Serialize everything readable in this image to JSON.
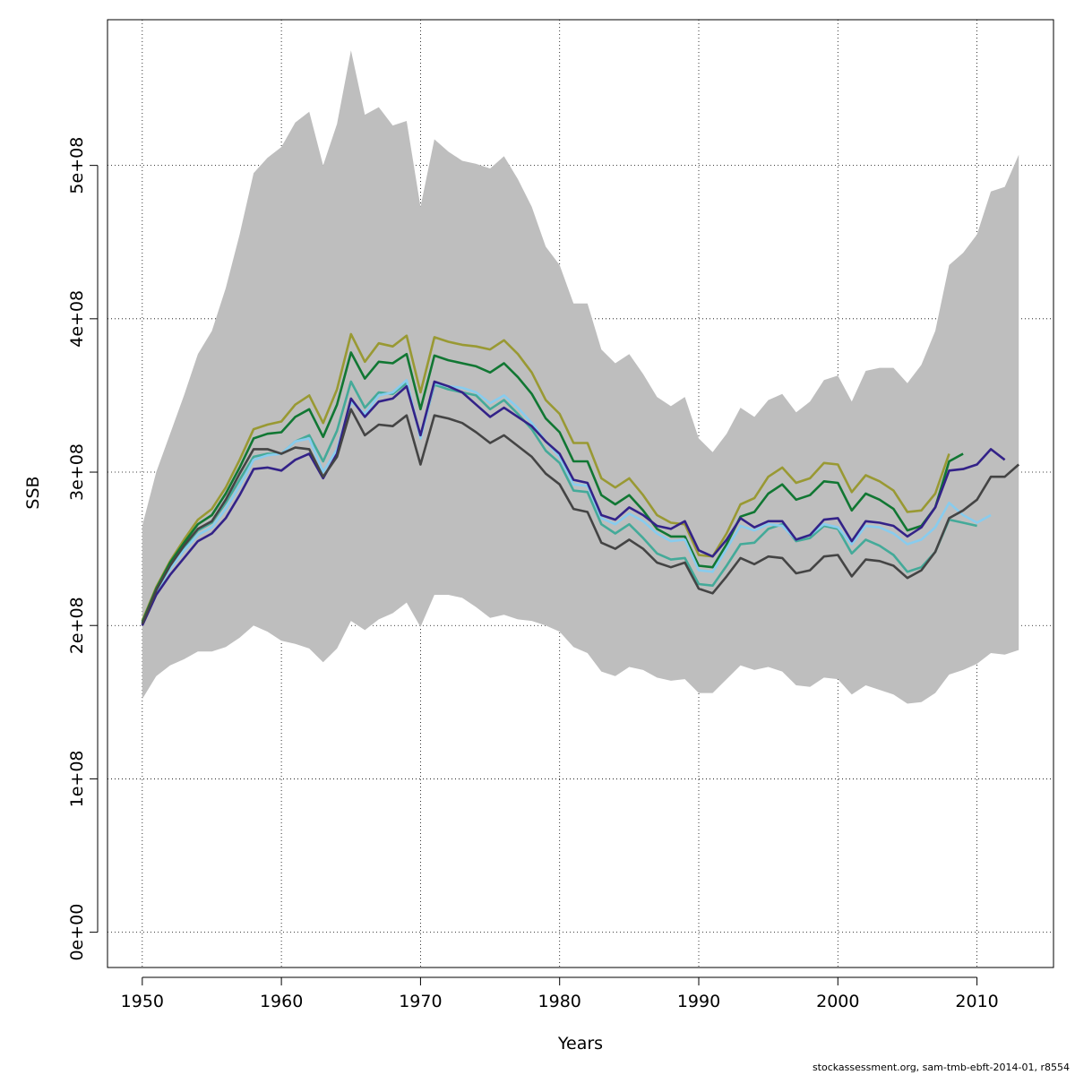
{
  "footer_text": "stockassessment.org, sam-tmb-ebft-2014-01, r8554",
  "chart_data": {
    "type": "line",
    "title": "",
    "xlabel": "Years",
    "ylabel": "SSB",
    "xlim": [
      1947.5,
      2015.5
    ],
    "ylim": [
      -23000000.0,
      595000000.0
    ],
    "xticks": [
      1950,
      1960,
      1970,
      1980,
      1990,
      2000,
      2010
    ],
    "xtick_labels": [
      "1950",
      "1960",
      "1970",
      "1980",
      "1990",
      "2000",
      "2010"
    ],
    "yticks": [
      0,
      100000000,
      200000000,
      300000000,
      400000000,
      500000000
    ],
    "ytick_labels": [
      "0e+00",
      "1e+08",
      "2e+08",
      "3e+08",
      "4e+08",
      "5e+08"
    ],
    "grid": true,
    "band_color": "#bebebe",
    "band": {
      "x": [
        1950,
        1951,
        1952,
        1953,
        1954,
        1955,
        1956,
        1957,
        1958,
        1959,
        1960,
        1961,
        1962,
        1963,
        1964,
        1965,
        1966,
        1967,
        1968,
        1969,
        1970,
        1971,
        1972,
        1973,
        1974,
        1975,
        1976,
        1977,
        1978,
        1979,
        1980,
        1981,
        1982,
        1983,
        1984,
        1985,
        1986,
        1987,
        1988,
        1989,
        1990,
        1991,
        1992,
        1993,
        1994,
        1995,
        1996,
        1997,
        1998,
        1999,
        2000,
        2001,
        2002,
        2003,
        2004,
        2005,
        2006,
        2007,
        2008,
        2009,
        2010,
        2011,
        2012,
        2013
      ],
      "upper": [
        265000000.0,
        300000000.0,
        325000000.0,
        350000000.0,
        377000000.0,
        392000000.0,
        420000000.0,
        455000000.0,
        495000000.0,
        505000000.0,
        512000000.0,
        528000000.0,
        535000000.0,
        500000000.0,
        527000000.0,
        575000000.0,
        533000000.0,
        538000000.0,
        526000000.0,
        529000000.0,
        473000000.0,
        517000000.0,
        509000000.0,
        503000000.0,
        501000000.0,
        498000000.0,
        506000000.0,
        491000000.0,
        473000000.0,
        447000000.0,
        435000000.0,
        410000000.0,
        410000000.0,
        380000000.0,
        371000000.0,
        377000000.0,
        364000000.0,
        349000000.0,
        343000000.0,
        349000000.0,
        322000000.0,
        313000000.0,
        325000000.0,
        342000000.0,
        336000000.0,
        347000000.0,
        351000000.0,
        339000000.0,
        346000000.0,
        360000000.0,
        363000000.0,
        346000000.0,
        366000000.0,
        368000000.0,
        368000000.0,
        358000000.0,
        370000000.0,
        392000000.0,
        435000000.0,
        443000000.0,
        455000000.0,
        483000000.0,
        486000000.0,
        507000000.0
      ],
      "lower": [
        152000000.0,
        167000000.0,
        174000000.0,
        178000000.0,
        183000000.0,
        183000000.0,
        186000000.0,
        192000000.0,
        200000000.0,
        196000000.0,
        190000000.0,
        188000000.0,
        185000000.0,
        176000000.0,
        185000000.0,
        203000000.0,
        197000000.0,
        204000000.0,
        208000000.0,
        215000000.0,
        199000000.0,
        220000000.0,
        220000000.0,
        218000000.0,
        212000000.0,
        205000000.0,
        207000000.0,
        204000000.0,
        203000000.0,
        200000000.0,
        196000000.0,
        186000000.0,
        182000000.0,
        170000000.0,
        167000000.0,
        173000000.0,
        171000000.0,
        166000000.0,
        164000000.0,
        165000000.0,
        156000000.0,
        156000000.0,
        165000000.0,
        174000000.0,
        171000000.0,
        173000000.0,
        170000000.0,
        161000000.0,
        160000000.0,
        166000000.0,
        165000000.0,
        155000000.0,
        161000000.0,
        158000000.0,
        155000000.0,
        149000000.0,
        150000000.0,
        156000000.0,
        168000000.0,
        171000000.0,
        175000000.0,
        182000000.0,
        181000000.0,
        184000000.0
      ]
    },
    "series": [
      {
        "color": "#999933",
        "x": [
          1950,
          1951,
          1952,
          1953,
          1954,
          1955,
          1956,
          1957,
          1958,
          1959,
          1960,
          1961,
          1962,
          1963,
          1964,
          1965,
          1966,
          1967,
          1968,
          1969,
          1970,
          1971,
          1972,
          1973,
          1974,
          1975,
          1976,
          1977,
          1978,
          1979,
          1980,
          1981,
          1982,
          1983,
          1984,
          1985,
          1986,
          1987,
          1988,
          1989,
          1990,
          1991,
          1992,
          1993,
          1994,
          1995,
          1996,
          1997,
          1998,
          1999,
          2000,
          2001,
          2002,
          2003,
          2004,
          2005,
          2006,
          2007,
          2008
        ],
        "y": [
          203000000.0,
          225000000.0,
          242000000.0,
          256000000.0,
          269000000.0,
          276000000.0,
          290000000.0,
          308000000.0,
          328000000.0,
          331000000.0,
          333000000.0,
          344000000.0,
          350000000.0,
          332000000.0,
          354000000.0,
          390000000.0,
          372000000.0,
          384000000.0,
          382000000.0,
          389000000.0,
          352000000.0,
          388000000.0,
          385000000.0,
          383000000.0,
          382000000.0,
          380000000.0,
          386000000.0,
          377000000.0,
          365000000.0,
          347000000.0,
          338000000.0,
          319000000.0,
          319000000.0,
          296000000.0,
          290000000.0,
          296000000.0,
          285000000.0,
          272000000.0,
          267000000.0,
          266000000.0,
          246000000.0,
          245000000.0,
          260000000.0,
          279000000.0,
          283000000.0,
          297000000.0,
          303000000.0,
          293000000.0,
          296000000.0,
          306000000.0,
          305000000.0,
          287000000.0,
          298000000.0,
          294000000.0,
          288000000.0,
          274000000.0,
          275000000.0,
          286000000.0,
          312000000.0
        ]
      },
      {
        "color": "#117733",
        "x": [
          1950,
          1951,
          1952,
          1953,
          1954,
          1955,
          1956,
          1957,
          1958,
          1959,
          1960,
          1961,
          1962,
          1963,
          1964,
          1965,
          1966,
          1967,
          1968,
          1969,
          1970,
          1971,
          1972,
          1973,
          1974,
          1975,
          1976,
          1977,
          1978,
          1979,
          1980,
          1981,
          1982,
          1983,
          1984,
          1985,
          1986,
          1987,
          1988,
          1989,
          1990,
          1991,
          1992,
          1993,
          1994,
          1995,
          1996,
          1997,
          1998,
          1999,
          2000,
          2001,
          2002,
          2003,
          2004,
          2005,
          2006,
          2007,
          2008,
          2009
        ],
        "y": [
          202000000.0,
          224000000.0,
          241000000.0,
          254000000.0,
          266000000.0,
          272000000.0,
          286000000.0,
          303000000.0,
          322000000.0,
          325000000.0,
          326000000.0,
          336000000.0,
          341000000.0,
          323000000.0,
          344000000.0,
          378000000.0,
          361000000.0,
          372000000.0,
          371000000.0,
          377000000.0,
          341000000.0,
          376000000.0,
          373000000.0,
          371000000.0,
          369000000.0,
          365000000.0,
          371000000.0,
          362000000.0,
          351000000.0,
          335000000.0,
          326000000.0,
          307000000.0,
          307000000.0,
          285000000.0,
          279000000.0,
          285000000.0,
          275000000.0,
          263000000.0,
          258000000.0,
          258000000.0,
          239000000.0,
          238000000.0,
          253000000.0,
          271000000.0,
          274000000.0,
          286000000.0,
          292000000.0,
          282000000.0,
          285000000.0,
          294000000.0,
          293000000.0,
          275000000.0,
          286000000.0,
          282000000.0,
          276000000.0,
          262000000.0,
          265000000.0,
          277000000.0,
          307000000.0,
          312000000.0
        ]
      },
      {
        "color": "#44aa99",
        "x": [
          1950,
          1951,
          1952,
          1953,
          1954,
          1955,
          1956,
          1957,
          1958,
          1959,
          1960,
          1961,
          1962,
          1963,
          1964,
          1965,
          1966,
          1967,
          1968,
          1969,
          1970,
          1971,
          1972,
          1973,
          1974,
          1975,
          1976,
          1977,
          1978,
          1979,
          1980,
          1981,
          1982,
          1983,
          1984,
          1985,
          1986,
          1987,
          1988,
          1989,
          1990,
          1991,
          1992,
          1993,
          1994,
          1995,
          1996,
          1997,
          1998,
          1999,
          2000,
          2001,
          2002,
          2003,
          2004,
          2005,
          2006,
          2007,
          2008,
          2009,
          2010
        ],
        "y": [
          201000000.0,
          223000000.0,
          239000000.0,
          251000000.0,
          262000000.0,
          267000000.0,
          280000000.0,
          295000000.0,
          310000000.0,
          312000000.0,
          312000000.0,
          320000000.0,
          324000000.0,
          307000000.0,
          327000000.0,
          359000000.0,
          342000000.0,
          352000000.0,
          351000000.0,
          358000000.0,
          323000000.0,
          357000000.0,
          354000000.0,
          352000000.0,
          350000000.0,
          341000000.0,
          347000000.0,
          338000000.0,
          328000000.0,
          314000000.0,
          306000000.0,
          288000000.0,
          287000000.0,
          266000000.0,
          260000000.0,
          266000000.0,
          257000000.0,
          247000000.0,
          243000000.0,
          244000000.0,
          227000000.0,
          226000000.0,
          239000000.0,
          253000000.0,
          254000000.0,
          263000000.0,
          266000000.0,
          255000000.0,
          257000000.0,
          265000000.0,
          263000000.0,
          247000000.0,
          256000000.0,
          252000000.0,
          246000000.0,
          235000000.0,
          238000000.0,
          248000000.0,
          269000000.0,
          267000000.0,
          265000000.0
        ]
      },
      {
        "color": "#88ccee",
        "x": [
          1950,
          1951,
          1952,
          1953,
          1954,
          1955,
          1956,
          1957,
          1958,
          1959,
          1960,
          1961,
          1962,
          1963,
          1964,
          1965,
          1966,
          1967,
          1968,
          1969,
          1970,
          1971,
          1972,
          1973,
          1974,
          1975,
          1976,
          1977,
          1978,
          1979,
          1980,
          1981,
          1982,
          1983,
          1984,
          1985,
          1986,
          1987,
          1988,
          1989,
          1990,
          1991,
          1992,
          1993,
          1994,
          1995,
          1996,
          1997,
          1998,
          1999,
          2000,
          2001,
          2002,
          2003,
          2004,
          2005,
          2006,
          2007,
          2008,
          2009,
          2010,
          2011
        ],
        "y": [
          201000000.0,
          222000000.0,
          237000000.0,
          249000000.0,
          259000000.0,
          264000000.0,
          276000000.0,
          291000000.0,
          308000000.0,
          311000000.0,
          312000000.0,
          320000000.0,
          322000000.0,
          300000000.0,
          315000000.0,
          346000000.0,
          338000000.0,
          350000000.0,
          352000000.0,
          360000000.0,
          322000000.0,
          358000000.0,
          356000000.0,
          355000000.0,
          352000000.0,
          345000000.0,
          350000000.0,
          342000000.0,
          332000000.0,
          320000000.0,
          310000000.0,
          292000000.0,
          291000000.0,
          270000000.0,
          266000000.0,
          273000000.0,
          268000000.0,
          260000000.0,
          255000000.0,
          256000000.0,
          236000000.0,
          235000000.0,
          250000000.0,
          265000000.0,
          262000000.0,
          266000000.0,
          265000000.0,
          256000000.0,
          259000000.0,
          266000000.0,
          264000000.0,
          253000000.0,
          265000000.0,
          264000000.0,
          260000000.0,
          253000000.0,
          256000000.0,
          264000000.0,
          280000000.0,
          272000000.0,
          267000000.0,
          272000000.0
        ]
      },
      {
        "color": "#332288",
        "x": [
          1950,
          1951,
          1952,
          1953,
          1954,
          1955,
          1956,
          1957,
          1958,
          1959,
          1960,
          1961,
          1962,
          1963,
          1964,
          1965,
          1966,
          1967,
          1968,
          1969,
          1970,
          1971,
          1972,
          1973,
          1974,
          1975,
          1976,
          1977,
          1978,
          1979,
          1980,
          1981,
          1982,
          1983,
          1984,
          1985,
          1986,
          1987,
          1988,
          1989,
          1990,
          1991,
          1992,
          1993,
          1994,
          1995,
          1996,
          1997,
          1998,
          1999,
          2000,
          2001,
          2002,
          2003,
          2004,
          2005,
          2006,
          2007,
          2008,
          2009,
          2010,
          2011,
          2012
        ],
        "y": [
          200000000.0,
          220000000.0,
          233000000.0,
          244000000.0,
          255000000.0,
          260000000.0,
          270000000.0,
          285000000.0,
          302000000.0,
          303000000.0,
          301000000.0,
          308000000.0,
          312000000.0,
          296000000.0,
          312000000.0,
          348000000.0,
          336000000.0,
          346000000.0,
          348000000.0,
          356000000.0,
          324000000.0,
          359000000.0,
          356000000.0,
          352000000.0,
          344000000.0,
          336000000.0,
          342000000.0,
          336000000.0,
          330000000.0,
          320000000.0,
          312000000.0,
          295000000.0,
          293000000.0,
          272000000.0,
          269000000.0,
          277000000.0,
          272000000.0,
          265000000.0,
          263000000.0,
          268000000.0,
          249000000.0,
          245000000.0,
          256000000.0,
          270000000.0,
          264000000.0,
          268000000.0,
          268000000.0,
          256000000.0,
          259000000.0,
          269000000.0,
          270000000.0,
          255000000.0,
          268000000.0,
          267000000.0,
          265000000.0,
          258000000.0,
          264000000.0,
          277000000.0,
          301000000.0,
          302000000.0,
          305000000.0,
          315000000.0,
          308000000.0
        ]
      },
      {
        "color": "#444444",
        "x": [
          1950,
          1951,
          1952,
          1953,
          1954,
          1955,
          1956,
          1957,
          1958,
          1959,
          1960,
          1961,
          1962,
          1963,
          1964,
          1965,
          1966,
          1967,
          1968,
          1969,
          1970,
          1971,
          1972,
          1973,
          1974,
          1975,
          1976,
          1977,
          1978,
          1979,
          1980,
          1981,
          1982,
          1983,
          1984,
          1985,
          1986,
          1987,
          1988,
          1989,
          1990,
          1991,
          1992,
          1993,
          1994,
          1995,
          1996,
          1997,
          1998,
          1999,
          2000,
          2001,
          2002,
          2003,
          2004,
          2005,
          2006,
          2007,
          2008,
          2009,
          2010,
          2011,
          2012,
          2013
        ],
        "y": [
          201000000.0,
          223000000.0,
          239000000.0,
          252000000.0,
          263000000.0,
          268000000.0,
          282000000.0,
          299000000.0,
          315000000.0,
          315000000.0,
          312000000.0,
          316000000.0,
          315000000.0,
          297000000.0,
          310000000.0,
          341000000.0,
          324000000.0,
          331000000.0,
          330000000.0,
          337000000.0,
          305000000.0,
          337000000.0,
          335000000.0,
          332000000.0,
          326000000.0,
          319000000.0,
          324000000.0,
          317000000.0,
          310000000.0,
          299000000.0,
          292000000.0,
          276000000.0,
          274000000.0,
          254000000.0,
          250000000.0,
          256000000.0,
          250000000.0,
          241000000.0,
          238000000.0,
          241000000.0,
          224000000.0,
          221000000.0,
          232000000.0,
          244000000.0,
          240000000.0,
          245000000.0,
          244000000.0,
          234000000.0,
          236000000.0,
          245000000.0,
          246000000.0,
          232000000.0,
          243000000.0,
          242000000.0,
          239000000.0,
          231000000.0,
          236000000.0,
          248000000.0,
          270000000.0,
          275000000.0,
          282000000.0,
          297000000.0,
          297000000.0,
          305000000.0
        ]
      }
    ]
  }
}
